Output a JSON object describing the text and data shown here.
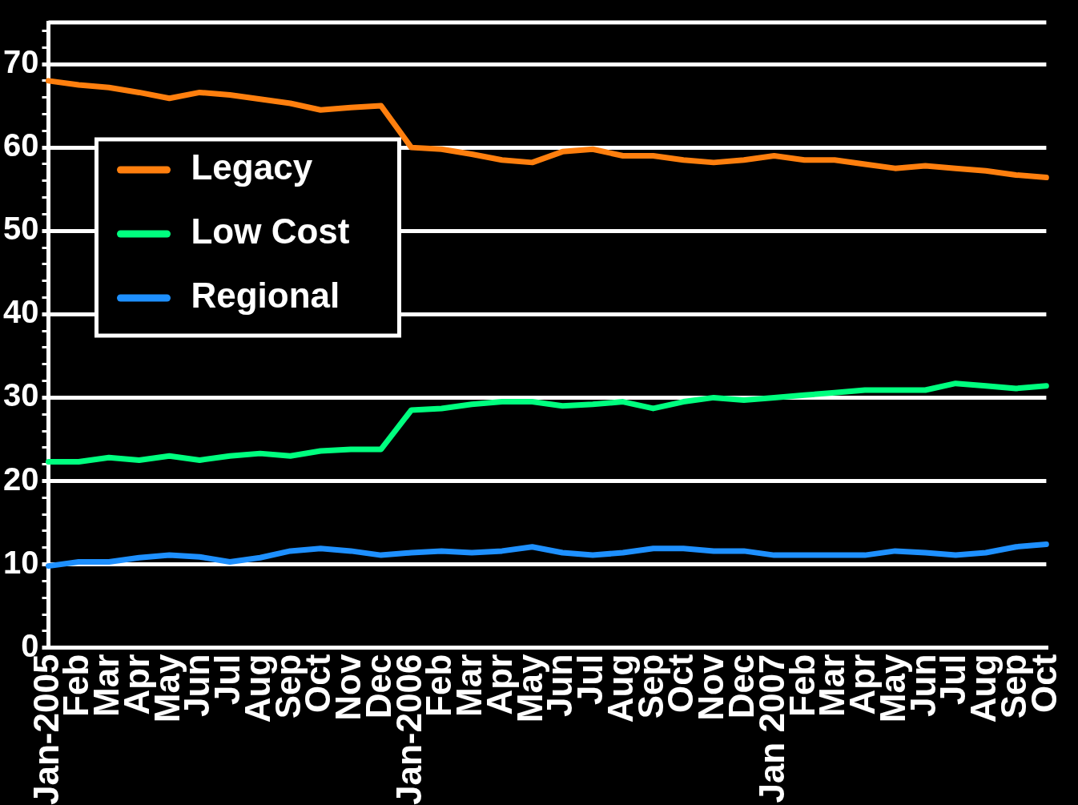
{
  "chart_data": {
    "type": "line",
    "categories": [
      "Jan-2005",
      "Feb",
      "Mar",
      "Apr",
      "May",
      "Jun",
      "Jul",
      "Aug",
      "Sep",
      "Oct",
      "Nov",
      "Dec",
      "Jan-2006",
      "Feb",
      "Mar",
      "Apr",
      "May",
      "Jun",
      "Jul",
      "Aug",
      "Sep",
      "Oct",
      "Nov",
      "Dec",
      "Jan 2007",
      "Feb",
      "Mar",
      "Apr",
      "May",
      "Jun",
      "Jul",
      "Aug",
      "Sep",
      "Oct"
    ],
    "series": [
      {
        "name": "Legacy",
        "color": "#ff7f0e",
        "values": [
          68.0,
          67.5,
          67.2,
          66.6,
          65.9,
          66.6,
          66.3,
          65.8,
          65.3,
          64.5,
          64.8,
          65.0,
          60.0,
          59.8,
          59.2,
          58.5,
          58.2,
          59.5,
          59.8,
          59.0,
          59.0,
          58.5,
          58.2,
          58.5,
          59.0,
          58.5,
          58.5,
          58.0,
          57.5,
          57.8,
          57.5,
          57.2,
          56.7,
          56.4
        ]
      },
      {
        "name": "Low Cost",
        "color": "#00ff7f",
        "values": [
          22.3,
          22.3,
          22.8,
          22.5,
          23.0,
          22.5,
          23.0,
          23.3,
          23.0,
          23.6,
          23.8,
          23.8,
          28.5,
          28.7,
          29.2,
          29.5,
          29.5,
          29.0,
          29.2,
          29.5,
          28.7,
          29.5,
          30.0,
          29.7,
          30.0,
          30.3,
          30.6,
          30.9,
          30.9,
          30.9,
          31.7,
          31.4,
          31.1,
          31.4
        ]
      },
      {
        "name": "Regional",
        "color": "#1e90ff",
        "values": [
          9.8,
          10.3,
          10.3,
          10.8,
          11.1,
          10.9,
          10.3,
          10.8,
          11.6,
          11.9,
          11.6,
          11.1,
          11.4,
          11.6,
          11.4,
          11.6,
          12.1,
          11.4,
          11.1,
          11.4,
          11.9,
          11.9,
          11.6,
          11.6,
          11.1,
          11.1,
          11.1,
          11.1,
          11.6,
          11.4,
          11.1,
          11.4,
          12.1,
          12.4
        ]
      }
    ],
    "ylim": [
      0,
      75
    ],
    "yticks": [
      0,
      {
        "value": 2,
        "label": null
      },
      {
        "value": 4,
        "label": null
      },
      {
        "value": 6,
        "label": null
      },
      {
        "value": 8,
        "label": null
      },
      10,
      {
        "value": 12,
        "label": null
      },
      {
        "value": 14,
        "label": null
      },
      {
        "value": 16,
        "label": null
      },
      {
        "value": 18,
        "label": null
      },
      20,
      {
        "value": 22,
        "label": null
      },
      {
        "value": 24,
        "label": null
      },
      {
        "value": 26,
        "label": null
      },
      {
        "value": 28,
        "label": null
      },
      30,
      {
        "value": 32,
        "label": null
      },
      {
        "value": 34,
        "label": null
      },
      {
        "value": 36,
        "label": null
      },
      {
        "value": 38,
        "label": null
      },
      40,
      {
        "value": 42,
        "label": null
      },
      {
        "value": 44,
        "label": null
      },
      {
        "value": 46,
        "label": null
      },
      {
        "value": 48,
        "label": null
      },
      50,
      {
        "value": 52,
        "label": null
      },
      {
        "value": 54,
        "label": null
      },
      {
        "value": 56,
        "label": null
      },
      {
        "value": 58,
        "label": null
      },
      60,
      {
        "value": 62,
        "label": null
      },
      {
        "value": 64,
        "label": null
      },
      {
        "value": 66,
        "label": null
      },
      {
        "value": 68,
        "label": null
      },
      70,
      {
        "value": 72,
        "label": null
      },
      {
        "value": 74,
        "label": null
      }
    ],
    "grid": "y",
    "legend": "top left",
    "marker": "none",
    "line_style": "solid"
  }
}
